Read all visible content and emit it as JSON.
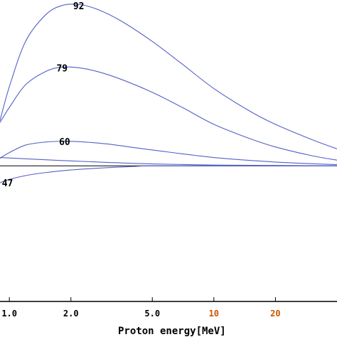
{
  "chart_data": {
    "type": "line",
    "title": "",
    "xlabel": "Proton energy[MeV]",
    "ylabel": "",
    "x_scale": "log",
    "xlim": [
      0.9,
      40
    ],
    "ylim": [
      -3.6,
      4.4
    ],
    "baseline": 0,
    "grid": false,
    "x_ticks": [
      {
        "value": 1.0,
        "label": "1.0",
        "color": "#000000"
      },
      {
        "value": 2.0,
        "label": "2.0",
        "color": "#000000"
      },
      {
        "value": 5.0,
        "label": "5.0",
        "color": "#000000"
      },
      {
        "value": 10,
        "label": "10",
        "color": "#cc5500"
      },
      {
        "value": 20,
        "label": "20",
        "color": "#cc5500"
      }
    ],
    "line_color": "#5560c8",
    "series": [
      {
        "name": "92",
        "label_at": {
          "x": 2.05,
          "y": 4.25
        },
        "points": [
          [
            0.9,
            1.2
          ],
          [
            1.0,
            2.1
          ],
          [
            1.2,
            3.3
          ],
          [
            1.5,
            4.0
          ],
          [
            1.8,
            4.25
          ],
          [
            2.2,
            4.28
          ],
          [
            2.7,
            4.15
          ],
          [
            3.5,
            3.85
          ],
          [
            5.0,
            3.3
          ],
          [
            7.0,
            2.7
          ],
          [
            10,
            2.05
          ],
          [
            15,
            1.45
          ],
          [
            20,
            1.1
          ],
          [
            30,
            0.7
          ],
          [
            40,
            0.45
          ]
        ]
      },
      {
        "name": "79",
        "label_at": {
          "x": 1.7,
          "y": 2.6
        },
        "points": [
          [
            0.9,
            1.15
          ],
          [
            1.0,
            1.55
          ],
          [
            1.2,
            2.15
          ],
          [
            1.5,
            2.5
          ],
          [
            1.8,
            2.62
          ],
          [
            2.2,
            2.6
          ],
          [
            2.7,
            2.5
          ],
          [
            3.5,
            2.3
          ],
          [
            5.0,
            1.95
          ],
          [
            7.0,
            1.55
          ],
          [
            10,
            1.1
          ],
          [
            15,
            0.72
          ],
          [
            20,
            0.5
          ],
          [
            30,
            0.27
          ],
          [
            40,
            0.15
          ]
        ]
      },
      {
        "name": "60",
        "label_at": {
          "x": 1.75,
          "y": 0.65
        },
        "points": [
          [
            0.9,
            0.2
          ],
          [
            1.0,
            0.35
          ],
          [
            1.2,
            0.55
          ],
          [
            1.5,
            0.63
          ],
          [
            1.8,
            0.65
          ],
          [
            2.2,
            0.64
          ],
          [
            3.0,
            0.58
          ],
          [
            5.0,
            0.42
          ],
          [
            10,
            0.22
          ],
          [
            20,
            0.1
          ],
          [
            40,
            0.03
          ]
        ]
      },
      {
        "name": "",
        "points": [
          [
            0.9,
            0.22
          ],
          [
            1.5,
            0.16
          ],
          [
            2.0,
            0.13
          ],
          [
            3.0,
            0.09
          ],
          [
            5.0,
            0.05
          ],
          [
            10,
            0.02
          ],
          [
            20,
            0.01
          ],
          [
            40,
            0.0
          ]
        ]
      },
      {
        "name": "47",
        "label_at": {
          "x": 0.92,
          "y": -0.45
        },
        "points": [
          [
            0.9,
            -0.45
          ],
          [
            1.0,
            -0.36
          ],
          [
            1.2,
            -0.26
          ],
          [
            1.5,
            -0.18
          ],
          [
            2.0,
            -0.11
          ],
          [
            3.0,
            -0.05
          ],
          [
            4.0,
            -0.02
          ],
          [
            5.0,
            0.0
          ],
          [
            10,
            0.0
          ],
          [
            40,
            0.0
          ]
        ]
      }
    ]
  }
}
